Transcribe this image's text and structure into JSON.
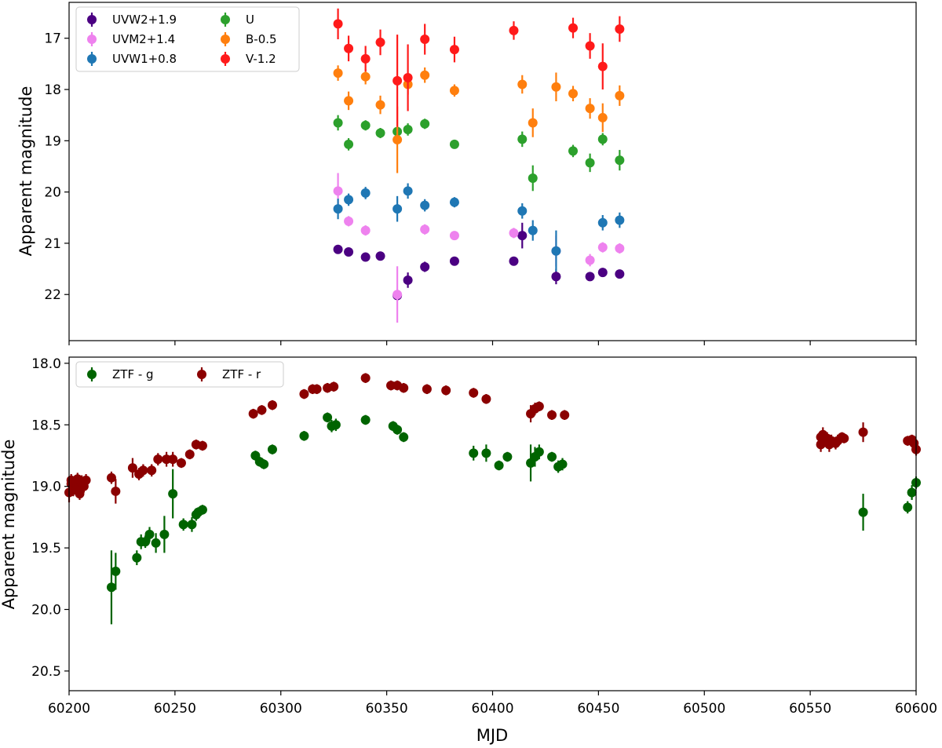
{
  "chart_data": [
    {
      "type": "scatter",
      "ylabel": "Apparent magnitude",
      "xlim": [
        60200,
        60600
      ],
      "ylim": [
        22.9,
        16.3
      ],
      "yticks": [
        17,
        18,
        19,
        20,
        21,
        22
      ],
      "legend_position": "top-left",
      "series": [
        {
          "name": "UVW2+1.9",
          "color": "#4b0082",
          "points": [
            [
              60327,
              21.12,
              0.08
            ],
            [
              60332,
              21.17,
              0.05
            ],
            [
              60340,
              21.27,
              0.05
            ],
            [
              60347,
              21.25,
              0.05
            ],
            [
              60355,
              22.02,
              0.1
            ],
            [
              60360,
              21.72,
              0.15
            ],
            [
              60368,
              21.46,
              0.1
            ],
            [
              60382,
              21.35,
              0.05
            ],
            [
              60410,
              21.35,
              0.05
            ],
            [
              60414,
              20.85,
              0.25
            ],
            [
              60430,
              21.65,
              0.15
            ],
            [
              60446,
              21.65,
              0.05
            ],
            [
              60452,
              21.57,
              0.05
            ],
            [
              60460,
              21.6,
              0.05
            ]
          ]
        },
        {
          "name": "UVM2+1.4",
          "color": "#ee82ee",
          "points": [
            [
              60327,
              19.98,
              0.35
            ],
            [
              60332,
              20.57,
              0.1
            ],
            [
              60340,
              20.75,
              0.1
            ],
            [
              60355,
              22.0,
              0.55
            ],
            [
              60368,
              20.73,
              0.1
            ],
            [
              60382,
              20.85,
              0.08
            ],
            [
              60410,
              20.8,
              0.1
            ],
            [
              60430,
              21.15,
              0.3
            ],
            [
              60446,
              21.33,
              0.12
            ],
            [
              60452,
              21.08,
              0.1
            ],
            [
              60460,
              21.1,
              0.1
            ]
          ]
        },
        {
          "name": "UVW1+0.8",
          "color": "#1f77b4",
          "points": [
            [
              60327,
              20.33,
              0.2
            ],
            [
              60332,
              20.15,
              0.12
            ],
            [
              60340,
              20.02,
              0.12
            ],
            [
              60355,
              20.33,
              0.25
            ],
            [
              60360,
              19.98,
              0.15
            ],
            [
              60368,
              20.26,
              0.12
            ],
            [
              60382,
              20.2,
              0.1
            ],
            [
              60414,
              20.37,
              0.15
            ],
            [
              60419,
              20.75,
              0.2
            ],
            [
              60430,
              21.15,
              0.4
            ],
            [
              60452,
              20.6,
              0.15
            ],
            [
              60460,
              20.55,
              0.15
            ]
          ]
        },
        {
          "name": "U",
          "color": "#2ca02c",
          "points": [
            [
              60327,
              18.65,
              0.15
            ],
            [
              60332,
              19.07,
              0.12
            ],
            [
              60340,
              18.7,
              0.1
            ],
            [
              60347,
              18.85,
              0.1
            ],
            [
              60355,
              18.82,
              0.1
            ],
            [
              60360,
              18.78,
              0.12
            ],
            [
              60368,
              18.67,
              0.1
            ],
            [
              60382,
              19.07,
              0.08
            ],
            [
              60414,
              18.97,
              0.15
            ],
            [
              60419,
              19.73,
              0.25
            ],
            [
              60438,
              19.2,
              0.12
            ],
            [
              60446,
              19.43,
              0.18
            ],
            [
              60452,
              18.97,
              0.12
            ],
            [
              60460,
              19.38,
              0.2
            ]
          ]
        },
        {
          "name": "B-0.5",
          "color": "#ff7f0e",
          "points": [
            [
              60327,
              17.68,
              0.15
            ],
            [
              60332,
              18.22,
              0.18
            ],
            [
              60340,
              17.75,
              0.15
            ],
            [
              60347,
              18.3,
              0.18
            ],
            [
              60355,
              18.98,
              0.65
            ],
            [
              60360,
              17.9,
              0.2
            ],
            [
              60368,
              17.72,
              0.15
            ],
            [
              60382,
              18.02,
              0.12
            ],
            [
              60414,
              17.9,
              0.18
            ],
            [
              60419,
              18.65,
              0.28
            ],
            [
              60430,
              17.95,
              0.28
            ],
            [
              60438,
              18.08,
              0.15
            ],
            [
              60446,
              18.37,
              0.2
            ],
            [
              60452,
              18.55,
              0.28
            ],
            [
              60460,
              18.12,
              0.2
            ]
          ]
        },
        {
          "name": "V-1.2",
          "color": "#ff1a1a",
          "points": [
            [
              60327,
              16.72,
              0.3
            ],
            [
              60332,
              17.2,
              0.25
            ],
            [
              60340,
              17.4,
              0.25
            ],
            [
              60347,
              17.08,
              0.25
            ],
            [
              60355,
              17.83,
              0.9
            ],
            [
              60360,
              17.77,
              0.65
            ],
            [
              60368,
              17.02,
              0.3
            ],
            [
              60382,
              17.22,
              0.25
            ],
            [
              60410,
              16.85,
              0.18
            ],
            [
              60438,
              16.8,
              0.2
            ],
            [
              60446,
              17.15,
              0.25
            ],
            [
              60452,
              17.55,
              0.45
            ],
            [
              60460,
              16.82,
              0.25
            ]
          ]
        }
      ]
    },
    {
      "type": "scatter",
      "xlabel": "MJD",
      "ylabel": "Apparent magnitude",
      "xlim": [
        60200,
        60600
      ],
      "ylim": [
        20.66,
        17.95
      ],
      "xticks": [
        60200,
        60250,
        60300,
        60350,
        60400,
        60450,
        60500,
        60550,
        60600
      ],
      "yticks": [
        18.0,
        18.5,
        19.0,
        19.5,
        20.0,
        20.5
      ],
      "legend_position": "top-left",
      "series": [
        {
          "name": "ZTF - g",
          "color": "#006400",
          "points": [
            [
              60220,
              19.82,
              0.3
            ],
            [
              60222,
              19.69,
              0.15
            ],
            [
              60232,
              19.58,
              0.06
            ],
            [
              60234,
              19.45,
              0.06
            ],
            [
              60236,
              19.45,
              0.05
            ],
            [
              60238,
              19.39,
              0.06
            ],
            [
              60241,
              19.46,
              0.08
            ],
            [
              60245,
              19.39,
              0.15
            ],
            [
              60249,
              19.06,
              0.2
            ],
            [
              60254,
              19.31,
              0.05
            ],
            [
              60258,
              19.31,
              0.06
            ],
            [
              60260,
              19.23,
              0.05
            ],
            [
              60261,
              19.21,
              0.04
            ],
            [
              60263,
              19.19,
              0.04
            ],
            [
              60288,
              18.75,
              0.04
            ],
            [
              60290,
              18.8,
              0.04
            ],
            [
              60292,
              18.82,
              0.04
            ],
            [
              60296,
              18.7,
              0.04
            ],
            [
              60311,
              18.59,
              0.04
            ],
            [
              60322,
              18.44,
              0.04
            ],
            [
              60324,
              18.51,
              0.05
            ],
            [
              60326,
              18.5,
              0.05
            ],
            [
              60340,
              18.46,
              0.04
            ],
            [
              60353,
              18.51,
              0.04
            ],
            [
              60355,
              18.54,
              0.04
            ],
            [
              60358,
              18.6,
              0.04
            ],
            [
              60391,
              18.73,
              0.06
            ],
            [
              60397,
              18.73,
              0.07
            ],
            [
              60403,
              18.83,
              0.04
            ],
            [
              60407,
              18.76,
              0.04
            ],
            [
              60418,
              18.81,
              0.15
            ],
            [
              60420,
              18.76,
              0.08
            ],
            [
              60422,
              18.72,
              0.06
            ],
            [
              60428,
              18.76,
              0.04
            ],
            [
              60431,
              18.84,
              0.05
            ],
            [
              60433,
              18.82,
              0.05
            ],
            [
              60575,
              19.21,
              0.15
            ],
            [
              60596,
              19.17,
              0.05
            ],
            [
              60598,
              19.05,
              0.06
            ],
            [
              60600,
              18.97,
              0.05
            ]
          ]
        },
        {
          "name": "ZTF - r",
          "color": "#8b0000",
          "points": [
            [
              60200,
              19.05,
              0.08
            ],
            [
              60201,
              18.98,
              0.06
            ],
            [
              60202,
              19.03,
              0.05
            ],
            [
              60203,
              18.97,
              0.05
            ],
            [
              60204,
              19.02,
              0.05
            ],
            [
              60205,
              19.06,
              0.05
            ],
            [
              60206,
              18.96,
              0.05
            ],
            [
              60207,
              19.0,
              0.05
            ],
            [
              60208,
              18.95,
              0.05
            ],
            [
              60201,
              18.95,
              0.05
            ],
            [
              60204,
              18.94,
              0.05
            ],
            [
              60220,
              18.93,
              0.05
            ],
            [
              60222,
              19.04,
              0.1
            ],
            [
              60230,
              18.85,
              0.08
            ],
            [
              60233,
              18.9,
              0.05
            ],
            [
              60235,
              18.87,
              0.05
            ],
            [
              60239,
              18.87,
              0.05
            ],
            [
              60242,
              18.78,
              0.05
            ],
            [
              60246,
              18.78,
              0.06
            ],
            [
              60249,
              18.78,
              0.06
            ],
            [
              60253,
              18.81,
              0.04
            ],
            [
              60257,
              18.74,
              0.04
            ],
            [
              60260,
              18.66,
              0.04
            ],
            [
              60263,
              18.67,
              0.04
            ],
            [
              60287,
              18.41,
              0.04
            ],
            [
              60291,
              18.38,
              0.04
            ],
            [
              60296,
              18.34,
              0.04
            ],
            [
              60311,
              18.25,
              0.04
            ],
            [
              60315,
              18.21,
              0.04
            ],
            [
              60317,
              18.21,
              0.04
            ],
            [
              60322,
              18.2,
              0.04
            ],
            [
              60325,
              18.19,
              0.04
            ],
            [
              60340,
              18.12,
              0.04
            ],
            [
              60352,
              18.18,
              0.04
            ],
            [
              60355,
              18.18,
              0.04
            ],
            [
              60358,
              18.2,
              0.04
            ],
            [
              60369,
              18.21,
              0.04
            ],
            [
              60378,
              18.22,
              0.04
            ],
            [
              60391,
              18.24,
              0.04
            ],
            [
              60397,
              18.29,
              0.04
            ],
            [
              60418,
              18.41,
              0.07
            ],
            [
              60420,
              18.37,
              0.05
            ],
            [
              60422,
              18.35,
              0.04
            ],
            [
              60428,
              18.42,
              0.04
            ],
            [
              60434,
              18.42,
              0.04
            ],
            [
              60555,
              18.6,
              0.05
            ],
            [
              60556,
              18.58,
              0.06
            ],
            [
              60557,
              18.63,
              0.05
            ],
            [
              60558,
              18.61,
              0.05
            ],
            [
              60559,
              18.66,
              0.06
            ],
            [
              60560,
              18.63,
              0.05
            ],
            [
              60562,
              18.65,
              0.05
            ],
            [
              60563,
              18.63,
              0.05
            ],
            [
              60565,
              18.6,
              0.04
            ],
            [
              60566,
              18.61,
              0.04
            ],
            [
              60555,
              18.66,
              0.06
            ],
            [
              60575,
              18.56,
              0.08
            ],
            [
              60596,
              18.63,
              0.04
            ],
            [
              60598,
              18.62,
              0.04
            ],
            [
              60599,
              18.65,
              0.05
            ],
            [
              60600,
              18.7,
              0.05
            ]
          ]
        }
      ]
    }
  ]
}
